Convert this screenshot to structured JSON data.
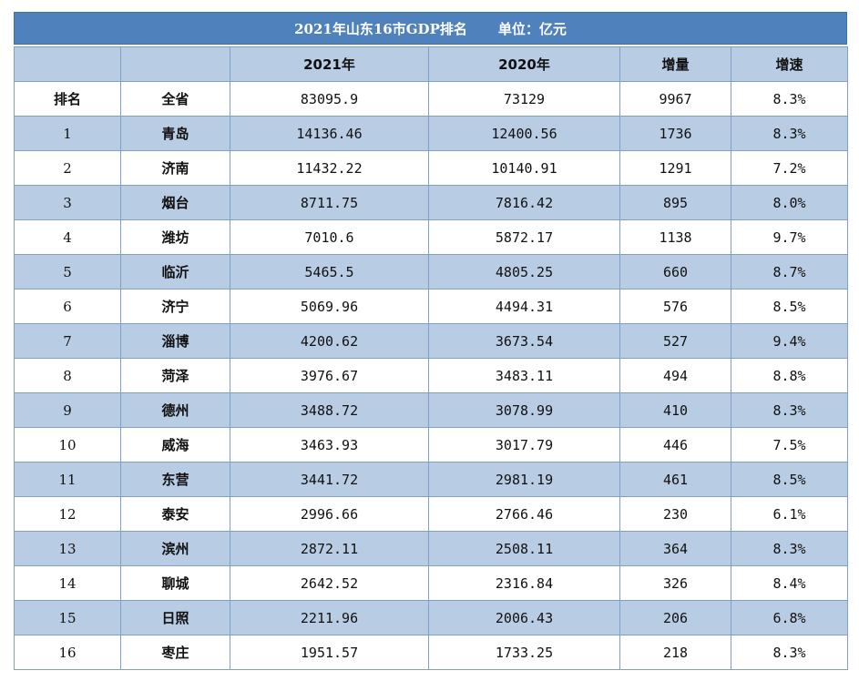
{
  "title": {
    "main": "2021年山东16市GDP排名",
    "unit": "单位：亿元"
  },
  "header": [
    "",
    "",
    "2021年",
    "2020年",
    "增量",
    "增速"
  ],
  "total": {
    "rank_label": "排名",
    "name": "全省",
    "gdp2021": "83095.9",
    "gdp2020": "73129",
    "increase": "9967",
    "growth": "8.3%"
  },
  "rows": [
    {
      "rank": "1",
      "city": "青岛",
      "gdp2021": "14136.46",
      "gdp2020": "12400.56",
      "increase": "1736",
      "growth": "8.3%"
    },
    {
      "rank": "2",
      "city": "济南",
      "gdp2021": "11432.22",
      "gdp2020": "10140.91",
      "increase": "1291",
      "growth": "7.2%"
    },
    {
      "rank": "3",
      "city": "烟台",
      "gdp2021": "8711.75",
      "gdp2020": "7816.42",
      "increase": "895",
      "growth": "8.0%"
    },
    {
      "rank": "4",
      "city": "潍坊",
      "gdp2021": "7010.6",
      "gdp2020": "5872.17",
      "increase": "1138",
      "growth": "9.7%"
    },
    {
      "rank": "5",
      "city": "临沂",
      "gdp2021": "5465.5",
      "gdp2020": "4805.25",
      "increase": "660",
      "growth": "8.7%"
    },
    {
      "rank": "6",
      "city": "济宁",
      "gdp2021": "5069.96",
      "gdp2020": "4494.31",
      "increase": "576",
      "growth": "8.5%"
    },
    {
      "rank": "7",
      "city": "淄博",
      "gdp2021": "4200.62",
      "gdp2020": "3673.54",
      "increase": "527",
      "growth": "9.4%"
    },
    {
      "rank": "8",
      "city": "菏泽",
      "gdp2021": "3976.67",
      "gdp2020": "3483.11",
      "increase": "494",
      "growth": "8.8%"
    },
    {
      "rank": "9",
      "city": "德州",
      "gdp2021": "3488.72",
      "gdp2020": "3078.99",
      "increase": "410",
      "growth": "8.3%"
    },
    {
      "rank": "10",
      "city": "威海",
      "gdp2021": "3463.93",
      "gdp2020": "3017.79",
      "increase": "446",
      "growth": "7.5%"
    },
    {
      "rank": "11",
      "city": "东营",
      "gdp2021": "3441.72",
      "gdp2020": "2981.19",
      "increase": "461",
      "growth": "8.5%"
    },
    {
      "rank": "12",
      "city": "泰安",
      "gdp2021": "2996.66",
      "gdp2020": "2766.46",
      "increase": "230",
      "growth": "6.1%"
    },
    {
      "rank": "13",
      "city": "滨州",
      "gdp2021": "2872.11",
      "gdp2020": "2508.11",
      "increase": "364",
      "growth": "8.3%"
    },
    {
      "rank": "14",
      "city": "聊城",
      "gdp2021": "2642.52",
      "gdp2020": "2316.84",
      "increase": "326",
      "growth": "8.4%"
    },
    {
      "rank": "15",
      "city": "日照",
      "gdp2021": "2211.96",
      "gdp2020": "2006.43",
      "increase": "206",
      "growth": "6.8%"
    },
    {
      "rank": "16",
      "city": "枣庄",
      "gdp2021": "1951.57",
      "gdp2020": "1733.25",
      "increase": "218",
      "growth": "8.3%"
    }
  ]
}
